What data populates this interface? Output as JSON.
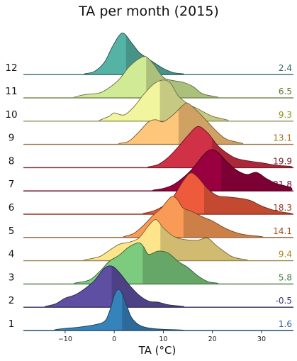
{
  "chart_data": {
    "type": "area",
    "subtype": "ridgeline",
    "title": "TA per month (2015)",
    "xlabel": "TA (°C)",
    "ylabel": "",
    "xlim": [
      -18.5,
      36.5
    ],
    "xticks": [
      -10,
      0,
      10,
      20,
      30
    ],
    "x_tick_labels": [
      "−10",
      "0",
      "10",
      "20",
      "30"
    ],
    "grid": false,
    "legend": "none",
    "series": [
      {
        "name": "1",
        "mean_label": "1.6",
        "mean": 1.6,
        "color": "#3682ba",
        "label_color": "#2c5f87",
        "density": [
          [
            -12,
            0.02
          ],
          [
            -10,
            0.05
          ],
          [
            -8,
            0.07
          ],
          [
            -6,
            0.1
          ],
          [
            -4,
            0.14
          ],
          [
            -2,
            0.22
          ],
          [
            -1,
            0.45
          ],
          [
            0,
            0.85
          ],
          [
            0.8,
            1.0
          ],
          [
            1.6,
            0.9
          ],
          [
            2.5,
            0.62
          ],
          [
            3.5,
            0.32
          ],
          [
            5,
            0.14
          ],
          [
            7,
            0.06
          ],
          [
            10,
            0.03
          ],
          [
            14,
            0.01
          ]
        ]
      },
      {
        "name": "2",
        "mean_label": "-0.5",
        "mean": -0.5,
        "color": "#5e4fa2",
        "label_color": "#3d3570",
        "density": [
          [
            -14,
            0.02
          ],
          [
            -12,
            0.08
          ],
          [
            -10,
            0.22
          ],
          [
            -8,
            0.3
          ],
          [
            -6,
            0.45
          ],
          [
            -4,
            0.65
          ],
          [
            -2,
            0.95
          ],
          [
            -0.5,
            1.0
          ],
          [
            1,
            0.85
          ],
          [
            3,
            0.55
          ],
          [
            5,
            0.3
          ],
          [
            7,
            0.15
          ],
          [
            9,
            0.12
          ],
          [
            11,
            0.06
          ],
          [
            14,
            0.02
          ]
        ]
      },
      {
        "name": "3",
        "mean_label": "5.8",
        "mean": 5.8,
        "color": "#7ccb7e",
        "label_color": "#3a7a3c",
        "density": [
          [
            -8,
            0.02
          ],
          [
            -5,
            0.1
          ],
          [
            -3,
            0.3
          ],
          [
            -1,
            0.55
          ],
          [
            1,
            0.7
          ],
          [
            3,
            0.9
          ],
          [
            5,
            1.0
          ],
          [
            6,
            0.9
          ],
          [
            7,
            0.72
          ],
          [
            9,
            0.8
          ],
          [
            11,
            0.75
          ],
          [
            13,
            0.55
          ],
          [
            15,
            0.4
          ],
          [
            17,
            0.2
          ],
          [
            19,
            0.06
          ],
          [
            21,
            0.02
          ]
        ]
      },
      {
        "name": "4",
        "mean_label": "9.4",
        "mean": 9.4,
        "color": "#fee48a",
        "label_color": "#a8891b",
        "density": [
          [
            -6,
            0.02
          ],
          [
            -3,
            0.1
          ],
          [
            -1,
            0.25
          ],
          [
            1,
            0.4
          ],
          [
            3,
            0.45
          ],
          [
            5,
            0.55
          ],
          [
            7,
            0.85
          ],
          [
            8.5,
            1.0
          ],
          [
            10,
            0.8
          ],
          [
            12,
            0.6
          ],
          [
            14,
            0.52
          ],
          [
            17,
            0.5
          ],
          [
            19,
            0.55
          ],
          [
            21,
            0.35
          ],
          [
            24,
            0.1
          ],
          [
            27,
            0.02
          ]
        ]
      },
      {
        "name": "5",
        "mean_label": "14.1",
        "mean": 14.1,
        "color": "#f99b57",
        "label_color": "#a0501b",
        "density": [
          [
            2,
            0.02
          ],
          [
            4,
            0.1
          ],
          [
            6,
            0.3
          ],
          [
            8,
            0.55
          ],
          [
            9.5,
            0.7
          ],
          [
            11,
            0.92
          ],
          [
            12,
            1.0
          ],
          [
            13,
            0.9
          ],
          [
            14,
            0.72
          ],
          [
            16,
            0.62
          ],
          [
            18,
            0.5
          ],
          [
            20,
            0.4
          ],
          [
            23,
            0.2
          ],
          [
            26,
            0.08
          ],
          [
            30,
            0.02
          ]
        ]
      },
      {
        "name": "6",
        "mean_label": "18.3",
        "mean": 18.3,
        "color": "#ee5a3c",
        "label_color": "#96331f",
        "density": [
          [
            6,
            0.02
          ],
          [
            8,
            0.08
          ],
          [
            10,
            0.2
          ],
          [
            12,
            0.42
          ],
          [
            14,
            0.8
          ],
          [
            15.5,
            1.0
          ],
          [
            17,
            0.9
          ],
          [
            19,
            0.62
          ],
          [
            21,
            0.45
          ],
          [
            23,
            0.42
          ],
          [
            26,
            0.38
          ],
          [
            28,
            0.32
          ],
          [
            30,
            0.2
          ],
          [
            33,
            0.08
          ],
          [
            36,
            0.02
          ]
        ]
      },
      {
        "name": "7",
        "mean_label": "21.8",
        "mean": 21.8,
        "color": "#98003f",
        "label_color": "#6d002d",
        "density": [
          [
            8,
            0.02
          ],
          [
            10,
            0.06
          ],
          [
            12,
            0.15
          ],
          [
            14,
            0.32
          ],
          [
            16,
            0.55
          ],
          [
            18,
            0.85
          ],
          [
            19.5,
            1.0
          ],
          [
            21,
            0.95
          ],
          [
            23,
            0.7
          ],
          [
            25,
            0.5
          ],
          [
            27,
            0.4
          ],
          [
            29,
            0.45
          ],
          [
            31,
            0.3
          ],
          [
            33,
            0.18
          ],
          [
            36,
            0.08
          ]
        ]
      },
      {
        "name": "8",
        "mean_label": "19.9",
        "mean": 19.9,
        "color": "#d03146",
        "label_color": "#7e1d2b",
        "density": [
          [
            7,
            0.02
          ],
          [
            9,
            0.08
          ],
          [
            11,
            0.25
          ],
          [
            13,
            0.5
          ],
          [
            15,
            0.78
          ],
          [
            17,
            1.0
          ],
          [
            19,
            0.85
          ],
          [
            21,
            0.55
          ],
          [
            23,
            0.35
          ],
          [
            25,
            0.22
          ],
          [
            28,
            0.15
          ],
          [
            30,
            0.12
          ],
          [
            33,
            0.06
          ],
          [
            36,
            0.03
          ]
        ]
      },
      {
        "name": "9",
        "mean_label": "13.1",
        "mean": 13.1,
        "color": "#fdc67a",
        "label_color": "#b06a10",
        "density": [
          [
            1,
            0.02
          ],
          [
            3,
            0.08
          ],
          [
            5,
            0.3
          ],
          [
            7,
            0.55
          ],
          [
            8.5,
            0.6
          ],
          [
            10,
            0.55
          ],
          [
            12,
            0.72
          ],
          [
            14,
            0.95
          ],
          [
            15,
            1.0
          ],
          [
            17,
            0.8
          ],
          [
            19,
            0.55
          ],
          [
            21,
            0.3
          ],
          [
            23,
            0.12
          ],
          [
            26,
            0.03
          ]
        ]
      },
      {
        "name": "10",
        "mean_label": "9.3",
        "mean": 9.3,
        "color": "#f1f59e",
        "label_color": "#8f9115",
        "density": [
          [
            -3,
            0.02
          ],
          [
            -1,
            0.12
          ],
          [
            0,
            0.2
          ],
          [
            2,
            0.15
          ],
          [
            4,
            0.35
          ],
          [
            6,
            0.65
          ],
          [
            8,
            0.9
          ],
          [
            10,
            1.0
          ],
          [
            11.5,
            0.92
          ],
          [
            13,
            0.62
          ],
          [
            15,
            0.42
          ],
          [
            17,
            0.3
          ],
          [
            20,
            0.12
          ],
          [
            23,
            0.03
          ]
        ]
      },
      {
        "name": "11",
        "mean_label": "6.5",
        "mean": 6.5,
        "color": "#d1ea95",
        "label_color": "#5d7a24",
        "density": [
          [
            -8,
            0.02
          ],
          [
            -6,
            0.08
          ],
          [
            -3,
            0.12
          ],
          [
            -1,
            0.25
          ],
          [
            1,
            0.45
          ],
          [
            3,
            0.75
          ],
          [
            5,
            0.95
          ],
          [
            6.5,
            1.0
          ],
          [
            8,
            0.82
          ],
          [
            10,
            0.5
          ],
          [
            12,
            0.42
          ],
          [
            14,
            0.38
          ],
          [
            16,
            0.28
          ],
          [
            18,
            0.1
          ],
          [
            21,
            0.02
          ]
        ]
      },
      {
        "name": "12",
        "mean_label": "2.4",
        "mean": 2.4,
        "color": "#55b3a6",
        "label_color": "#2c6b62",
        "density": [
          [
            -6,
            0.02
          ],
          [
            -4,
            0.08
          ],
          [
            -2,
            0.3
          ],
          [
            -0.5,
            0.65
          ],
          [
            1,
            0.95
          ],
          [
            2,
            1.0
          ],
          [
            3.5,
            0.78
          ],
          [
            5,
            0.55
          ],
          [
            6.5,
            0.42
          ],
          [
            8,
            0.3
          ],
          [
            10,
            0.15
          ],
          [
            12,
            0.05
          ],
          [
            14,
            0.02
          ]
        ]
      }
    ]
  }
}
